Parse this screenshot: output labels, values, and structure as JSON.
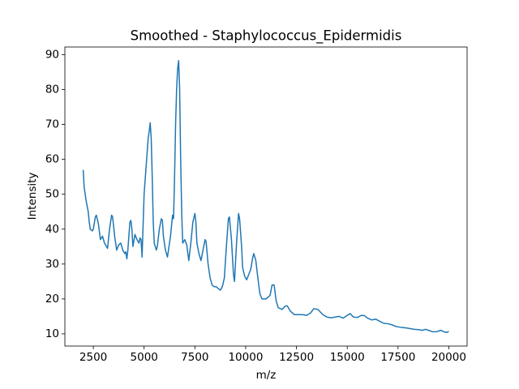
{
  "chart_data": {
    "type": "line",
    "title": "Smoothed - Staphylococcus_Epidermidis",
    "x_label": "m/z",
    "y_label": "Intensity",
    "color": "#1f77b4",
    "x": [
      2000,
      2050,
      2150,
      2250,
      2300,
      2350,
      2450,
      2500,
      2600,
      2650,
      2750,
      2850,
      2950,
      3050,
      3150,
      3200,
      3300,
      3400,
      3450,
      3550,
      3650,
      3750,
      3850,
      3950,
      4050,
      4100,
      4150,
      4200,
      4250,
      4300,
      4350,
      4400,
      4450,
      4550,
      4650,
      4750,
      4800,
      4850,
      4900,
      4950,
      5000,
      5100,
      5200,
      5250,
      5300,
      5350,
      5400,
      5450,
      5500,
      5600,
      5650,
      5750,
      5850,
      5900,
      5950,
      6050,
      6150,
      6200,
      6300,
      6400,
      6450,
      6500,
      6550,
      6600,
      6650,
      6700,
      6750,
      6800,
      6850,
      6900,
      7000,
      7100,
      7200,
      7300,
      7400,
      7500,
      7550,
      7600,
      7700,
      7800,
      7900,
      8000,
      8050,
      8150,
      8250,
      8350,
      8450,
      8550,
      8650,
      8750,
      8850,
      8950,
      9050,
      9150,
      9200,
      9300,
      9400,
      9450,
      9550,
      9650,
      9700,
      9800,
      9850,
      9950,
      10050,
      10150,
      10250,
      10350,
      10400,
      10500,
      10600,
      10700,
      10800,
      11000,
      11100,
      11200,
      11300,
      11400,
      11500,
      11600,
      11800,
      11950,
      12050,
      12200,
      12400,
      12600,
      12800,
      13000,
      13200,
      13350,
      13550,
      13800,
      14000,
      14200,
      14400,
      14600,
      14800,
      15000,
      15150,
      15300,
      15500,
      15700,
      15850,
      16000,
      16200,
      16400,
      16600,
      16800,
      17000,
      17200,
      17350,
      17500,
      17700,
      17900,
      18100,
      18300,
      18500,
      18700,
      18850,
      19000,
      19200,
      19400,
      19600,
      19800,
      19900,
      20000
    ],
    "values": [
      57,
      52,
      48,
      45,
      42,
      40,
      39.5,
      40,
      43.5,
      44,
      41.5,
      37,
      38,
      36,
      35,
      34.5,
      40,
      44,
      43.5,
      38,
      34,
      35.5,
      36,
      34,
      33,
      33.5,
      31.5,
      34,
      38,
      42,
      42.5,
      40,
      35,
      38.5,
      37,
      36,
      37.5,
      37,
      32,
      41,
      50,
      58,
      66,
      68,
      70.5,
      66,
      55,
      42,
      36,
      34,
      35,
      40,
      43,
      42.5,
      38,
      34,
      32,
      34,
      38,
      44,
      43,
      55,
      70,
      80,
      86,
      88.3,
      80,
      60,
      45,
      36,
      37,
      35.5,
      31,
      36,
      42,
      44.5,
      42,
      36,
      33,
      31,
      34,
      37,
      36.5,
      30,
      26,
      24,
      23.5,
      23.5,
      23,
      22.5,
      23.5,
      26,
      35,
      43,
      43.5,
      37,
      27,
      25,
      36,
      44.5,
      43,
      35,
      29,
      26.5,
      25.5,
      27,
      28.5,
      32,
      33,
      31,
      26,
      21.5,
      20,
      20,
      20.5,
      21,
      24,
      24,
      19.5,
      17.5,
      17,
      18,
      18,
      16.5,
      15.5,
      15.5,
      15.5,
      15.3,
      16,
      17.2,
      17,
      15.5,
      14.8,
      14.6,
      14.8,
      15,
      14.5,
      15.3,
      15.8,
      14.8,
      14.7,
      15.3,
      15.2,
      14.5,
      14,
      14.2,
      13.6,
      13,
      12.9,
      12.6,
      12.2,
      12,
      11.8,
      11.7,
      11.5,
      11.3,
      11.2,
      11.0,
      11.3,
      11.0,
      10.6,
      10.6,
      11.0,
      10.5,
      10.4,
      10.7
    ],
    "xlim": [
      1100,
      20900
    ],
    "ylim": [
      6.5,
      92.2
    ],
    "xticks": [
      2500,
      5000,
      7500,
      10000,
      12500,
      15000,
      17500,
      20000
    ],
    "yticks": [
      10,
      20,
      30,
      40,
      50,
      60,
      70,
      80,
      90
    ]
  }
}
